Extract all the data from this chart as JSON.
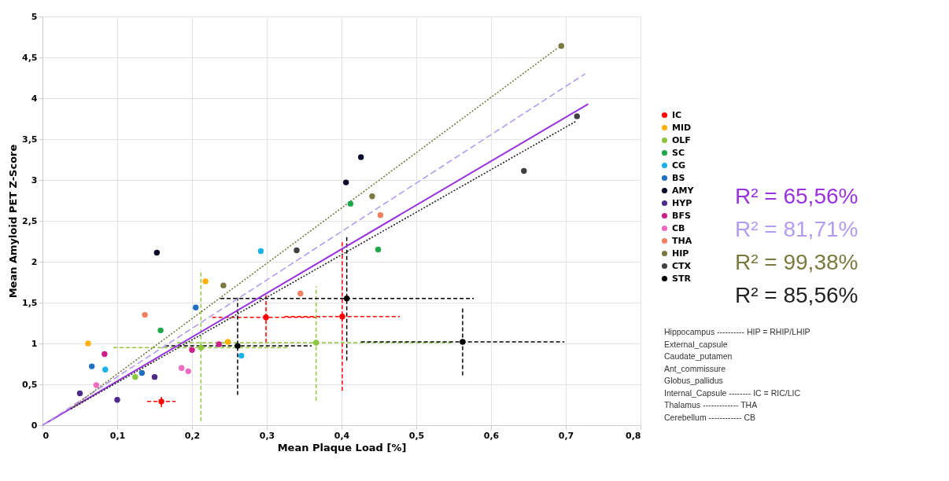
{
  "chart_data": {
    "type": "scatter",
    "xlabel": "Mean Plaque Load [%]",
    "ylabel": "Mean Amyloid PET Z-Score",
    "xlim": [
      0,
      0.8
    ],
    "ylim": [
      0,
      5
    ],
    "xticks": [
      0,
      {
        "value": 0.1,
        "label": "0,1"
      },
      {
        "value": 0.2,
        "label": "0,2"
      },
      {
        "value": 0.3,
        "label": "0,3"
      },
      {
        "value": 0.4,
        "label": "0,4"
      },
      {
        "value": 0.5,
        "label": "0,5"
      },
      {
        "value": 0.6,
        "label": "0,6"
      },
      {
        "value": 0.7,
        "label": "0,7"
      },
      {
        "value": 0.8,
        "label": "0,8"
      }
    ],
    "yticks": [
      0,
      {
        "value": 0.5,
        "label": "0,5"
      },
      1,
      {
        "value": 1.5,
        "label": "1,5"
      },
      2,
      {
        "value": 2.5,
        "label": "2,5"
      },
      3,
      {
        "value": 3.5,
        "label": "3,5"
      },
      4,
      {
        "value": 4.5,
        "label": "4,5"
      },
      5
    ],
    "grid": true,
    "legend": "right",
    "marker": "circle",
    "series": [
      {
        "name": "IC",
        "color": "#ff0000",
        "x": [
          0.299,
          0.401,
          0.159
        ],
        "values": [
          1.32,
          1.33,
          0.29
        ],
        "errors": [
          [
            1.01,
            1.59
          ],
          [
            0.42,
            2.24
          ],
          [
            0.22,
            0.37
          ]
        ],
        "xerrors": [
          [
            0.227,
            0.371
          ],
          [
            0.324,
            0.478
          ],
          [
            0.14,
            0.178
          ]
        ]
      },
      {
        "name": "MID",
        "color": "#ffb000",
        "x": [
          0.218,
          0.061,
          0.248
        ],
        "values": [
          1.76,
          1.0,
          1.02
        ]
      },
      {
        "name": "OLF",
        "color": "#8cc63f",
        "x": [
          0.212,
          0.366,
          0.124
        ],
        "values": [
          0.95,
          1.01,
          0.59
        ],
        "errors": [
          [
            0.05,
            1.9
          ],
          [
            0.3,
            1.7
          ],
          null
        ],
        "xerrors": [
          [
            0.095,
            0.33
          ],
          [
            0.18,
            0.55
          ],
          null
        ]
      },
      {
        "name": "SC",
        "color": "#1fa84a",
        "x": [
          0.158,
          0.412,
          0.449
        ],
        "values": [
          1.16,
          2.71,
          2.15
        ]
      },
      {
        "name": "CG",
        "color": "#1ab2e8",
        "x": [
          0.292,
          0.266,
          0.084
        ],
        "values": [
          2.13,
          0.85,
          0.68
        ]
      },
      {
        "name": "BS",
        "color": "#1f6fc0",
        "x": [
          0.205,
          0.066,
          0.133
        ],
        "values": [
          1.44,
          0.72,
          0.64
        ]
      },
      {
        "name": "AMY",
        "color": "#0a0a2a",
        "x": [
          0.153,
          0.406,
          0.426
        ],
        "values": [
          2.11,
          2.97,
          3.28
        ]
      },
      {
        "name": "HYP",
        "color": "#4b2a8a",
        "x": [
          0.15,
          0.05,
          0.1
        ],
        "values": [
          0.59,
          0.39,
          0.31
        ]
      },
      {
        "name": "BFS",
        "color": "#cc1f8a",
        "x": [
          0.236,
          0.2,
          0.083
        ],
        "values": [
          0.99,
          0.92,
          0.87
        ]
      },
      {
        "name": "CB",
        "color": "#f06cc0",
        "x": [
          0.186,
          0.195,
          0.072
        ],
        "values": [
          0.7,
          0.66,
          0.49
        ]
      },
      {
        "name": "THA",
        "color": "#f08060",
        "x": [
          0.345,
          0.137,
          0.452
        ],
        "values": [
          1.61,
          1.35,
          2.57
        ]
      },
      {
        "name": "HIP",
        "color": "#7a7a40",
        "x": [
          0.242,
          0.441,
          0.694
        ],
        "values": [
          1.71,
          2.8,
          4.64
        ]
      },
      {
        "name": "CTX",
        "color": "#404040",
        "x": [
          0.34,
          0.644,
          0.715
        ],
        "values": [
          2.14,
          3.11,
          3.78
        ]
      },
      {
        "name": "STR",
        "color": "#000000",
        "x": [
          0.261,
          0.407,
          0.562
        ],
        "values": [
          0.97,
          1.55,
          1.02
        ],
        "errors": [
          [
            0.37,
            1.56
          ],
          [
            0.79,
            2.32
          ],
          [
            0.61,
            1.43
          ]
        ],
        "xerrors": [
          [
            0.164,
            0.36
          ],
          [
            0.238,
            0.577
          ],
          [
            0.426,
            0.698
          ]
        ]
      },
      {
        "type": "line",
        "name": "R² = 65,56%",
        "color": "#9933dd",
        "line_style": "solid",
        "marker": "none",
        "x": [
          0,
          0.73
        ],
        "values": [
          0,
          3.93
        ]
      },
      {
        "type": "line",
        "name": "R² = 81,71%",
        "color": "#b39cf0",
        "line_style": "dashed",
        "marker": "none",
        "x": [
          0,
          0.726
        ],
        "values": [
          0,
          4.3
        ]
      },
      {
        "type": "line",
        "name": "R² = 99,38%",
        "color": "#7a7a40",
        "line_style": "dotted",
        "marker": "none",
        "x": [
          0.04,
          0.69
        ],
        "values": [
          0.22,
          4.62
        ]
      },
      {
        "type": "line",
        "name": "R² = 85,56%",
        "color": "#222222",
        "line_style": "dotted",
        "marker": "none",
        "x": [
          0.038,
          0.714
        ],
        "values": [
          0.2,
          3.72
        ]
      }
    ],
    "annotations": [
      "Hippocampus ---------- HIP = RHIP/LHIP",
      "External_capsule",
      "Caudate_putamen",
      "Ant_commissure",
      "Globus_pallidus",
      "Internal_Capsule -------- IC = RIC/LIC",
      "Thalamus ------------- THA",
      "Cerebellum ------------ CB"
    ]
  }
}
